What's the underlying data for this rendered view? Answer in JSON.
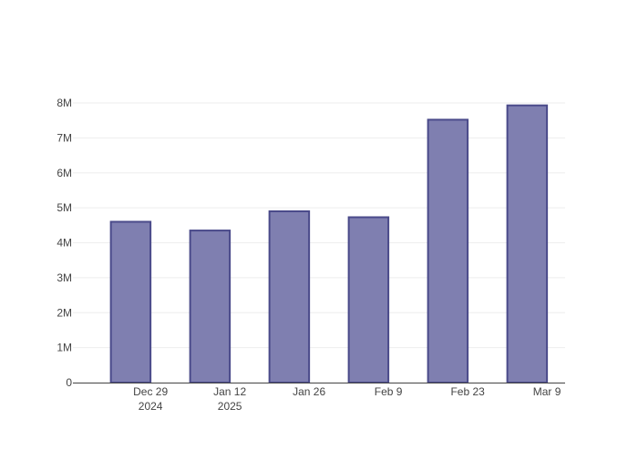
{
  "chart_data": {
    "type": "bar",
    "title": "",
    "xlabel": "",
    "ylabel": "",
    "categories": [
      "2024-12-22",
      "2025-01-05",
      "2025-01-19",
      "2025-02-02",
      "2025-02-16",
      "2025-03-02"
    ],
    "values": [
      4600000,
      4350000,
      4900000,
      4730000,
      7520000,
      7930000
    ],
    "ylim": [
      0,
      8000000
    ],
    "y_ticks": [
      {
        "value": 0,
        "label": "0"
      },
      {
        "value": 1000000,
        "label": "1M"
      },
      {
        "value": 2000000,
        "label": "2M"
      },
      {
        "value": 3000000,
        "label": "3M"
      },
      {
        "value": 4000000,
        "label": "4M"
      },
      {
        "value": 5000000,
        "label": "5M"
      },
      {
        "value": 6000000,
        "label": "6M"
      },
      {
        "value": 7000000,
        "label": "7M"
      },
      {
        "value": 8000000,
        "label": "8M"
      }
    ],
    "x_ticks": [
      {
        "date": "2024-12-29",
        "label": "Dec 29",
        "sublabel": "2024"
      },
      {
        "date": "2025-01-12",
        "label": "Jan 12",
        "sublabel": "2025"
      },
      {
        "date": "2025-01-26",
        "label": "Jan 26",
        "sublabel": ""
      },
      {
        "date": "2025-02-09",
        "label": "Feb 9",
        "sublabel": ""
      },
      {
        "date": "2025-02-23",
        "label": "Feb 23",
        "sublabel": ""
      },
      {
        "date": "2025-03-09",
        "label": "Mar 9",
        "sublabel": ""
      }
    ],
    "grid": true,
    "colors": {
      "bar_fill": "#7f7fb0",
      "bar_stroke": "#4a4a8a",
      "grid": "#eeeeee",
      "axis": "#444444"
    }
  }
}
